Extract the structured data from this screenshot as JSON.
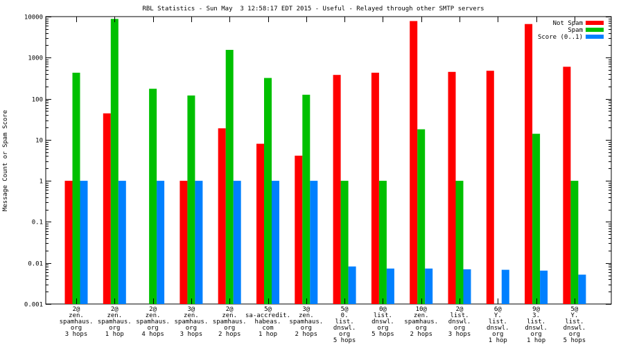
{
  "chart_data": {
    "type": "bar",
    "title": "RBL Statistics - Sun May  3 12:58:17 EDT 2015 - Useful - Relayed through other SMTP servers",
    "xlabel": "",
    "ylabel": "Message Count or Spam Score",
    "yscale": "log",
    "ylim": [
      0.001,
      10000
    ],
    "yticks": [
      "0.001",
      "0.01",
      "0.1",
      "1",
      "10",
      "100",
      "1000",
      "10000"
    ],
    "legend_position": "top-right",
    "categories": [
      [
        "2@",
        "zen.",
        "spamhaus.",
        "org",
        "3 hops"
      ],
      [
        "2@",
        "zen.",
        "spamhaus.",
        "org",
        "1 hop"
      ],
      [
        "2@",
        "zen.",
        "spamhaus.",
        "org",
        "4 hops"
      ],
      [
        "3@",
        "zen.",
        "spamhaus.",
        "org",
        "3 hops"
      ],
      [
        "2@",
        "zen.",
        "spamhaus.",
        "org",
        "2 hops"
      ],
      [
        "5@",
        "sa-accredit.",
        "habeas.",
        "com",
        "1 hop"
      ],
      [
        "3@",
        "zen.",
        "spamhaus.",
        "org",
        "2 hops"
      ],
      [
        "5@",
        "0.",
        "list.",
        "dnswl.",
        "org",
        "5 hops"
      ],
      [
        "0@",
        "list.",
        "dnswl.",
        "org",
        "5 hops"
      ],
      [
        "10@",
        "zen.",
        "spamhaus.",
        "org",
        "2 hops"
      ],
      [
        "2@",
        "list.",
        "dnswl.",
        "org",
        "3 hops"
      ],
      [
        "6@",
        "Y.",
        "list.",
        "dnswl.",
        "org",
        "1 hop"
      ],
      [
        "9@",
        "3.",
        "list.",
        "dnswl.",
        "org",
        "1 hop"
      ],
      [
        "5@",
        "Y.",
        "list.",
        "dnswl.",
        "org",
        "5 hops"
      ]
    ],
    "series": [
      {
        "name": "Not Spam",
        "color": "#ff0000",
        "values": [
          1,
          44,
          null,
          1,
          19,
          8,
          4.1,
          380,
          430,
          7800,
          450,
          480,
          6600,
          600
        ]
      },
      {
        "name": "Spam",
        "color": "#00c000",
        "values": [
          430,
          8800,
          175,
          120,
          1550,
          320,
          125,
          1,
          1,
          18,
          1,
          null,
          14,
          1
        ]
      },
      {
        "name": "Score (0..1)",
        "color": "#0080ff",
        "values": [
          1,
          1,
          1,
          1,
          1,
          1,
          1,
          0.0082,
          0.0073,
          0.0073,
          0.007,
          0.0068,
          0.0065,
          0.0052
        ]
      }
    ]
  }
}
